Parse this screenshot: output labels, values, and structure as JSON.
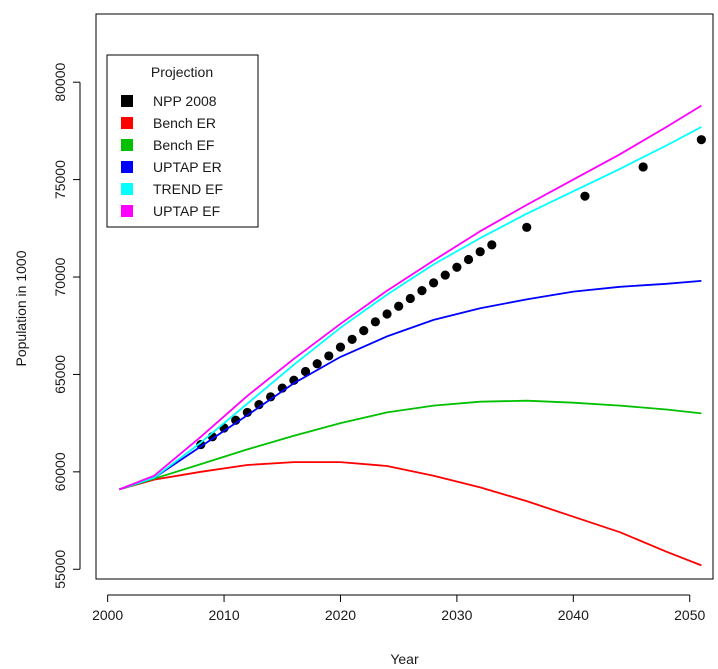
{
  "chart_data": {
    "type": "line",
    "title": "",
    "xlabel": "Year",
    "ylabel": "Population in 1000",
    "xlim": [
      1999,
      2052
    ],
    "ylim": [
      54500,
      83500
    ],
    "xticks": [
      2000,
      2010,
      2020,
      2030,
      2040,
      2050
    ],
    "yticks": [
      55000,
      60000,
      65000,
      70000,
      75000,
      80000
    ],
    "grid": false,
    "legend": {
      "title": "Projection",
      "position": "top-left"
    },
    "series": [
      {
        "name": "NPP 2008",
        "kind": "points",
        "color": "#000000",
        "x": [
          2008,
          2009,
          2010,
          2011,
          2012,
          2013,
          2014,
          2015,
          2016,
          2017,
          2018,
          2019,
          2020,
          2021,
          2022,
          2023,
          2024,
          2025,
          2026,
          2027,
          2028,
          2029,
          2030,
          2031,
          2032,
          2033,
          2036,
          2041,
          2046,
          2051
        ],
        "y": [
          61400,
          61800,
          62250,
          62650,
          63050,
          63450,
          63850,
          64300,
          64700,
          65150,
          65550,
          65950,
          66400,
          66800,
          67250,
          67700,
          68100,
          68500,
          68900,
          69300,
          69700,
          70100,
          70500,
          70900,
          71300,
          71650,
          72550,
          74150,
          75650,
          77050
        ]
      },
      {
        "name": "Bench ER",
        "kind": "line",
        "color": "#ff0000",
        "x": [
          2001,
          2004,
          2008,
          2012,
          2016,
          2020,
          2024,
          2028,
          2032,
          2036,
          2040,
          2044,
          2048,
          2051
        ],
        "y": [
          59100,
          59600,
          60000,
          60350,
          60500,
          60500,
          60300,
          59800,
          59200,
          58500,
          57700,
          56900,
          55900,
          55200
        ]
      },
      {
        "name": "Bench EF",
        "kind": "line",
        "color": "#00c000",
        "x": [
          2001,
          2004,
          2008,
          2012,
          2016,
          2020,
          2024,
          2028,
          2032,
          2036,
          2040,
          2044,
          2048,
          2051
        ],
        "y": [
          59100,
          59650,
          60400,
          61150,
          61850,
          62500,
          63050,
          63400,
          63600,
          63650,
          63550,
          63400,
          63200,
          63000
        ]
      },
      {
        "name": "UPTAP ER",
        "kind": "line",
        "color": "#0000ff",
        "x": [
          2001,
          2004,
          2008,
          2012,
          2016,
          2020,
          2024,
          2028,
          2032,
          2036,
          2040,
          2044,
          2048,
          2051
        ],
        "y": [
          59100,
          59700,
          61300,
          62900,
          64550,
          65900,
          66950,
          67800,
          68400,
          68850,
          69250,
          69500,
          69650,
          69800
        ]
      },
      {
        "name": "TREND EF",
        "kind": "line",
        "color": "#00ffff",
        "x": [
          2001,
          2004,
          2008,
          2012,
          2016,
          2020,
          2024,
          2028,
          2032,
          2036,
          2040,
          2044,
          2048,
          2051
        ],
        "y": [
          59100,
          59700,
          61500,
          63500,
          65500,
          67400,
          69100,
          70650,
          72000,
          73250,
          74400,
          75550,
          76750,
          77700
        ]
      },
      {
        "name": "UPTAP EF",
        "kind": "line",
        "color": "#ff00ff",
        "x": [
          2001,
          2004,
          2008,
          2012,
          2016,
          2020,
          2024,
          2028,
          2032,
          2036,
          2040,
          2044,
          2048,
          2051
        ],
        "y": [
          59100,
          59800,
          61800,
          63900,
          65800,
          67600,
          69300,
          70850,
          72350,
          73700,
          75000,
          76300,
          77700,
          78800
        ]
      }
    ]
  }
}
